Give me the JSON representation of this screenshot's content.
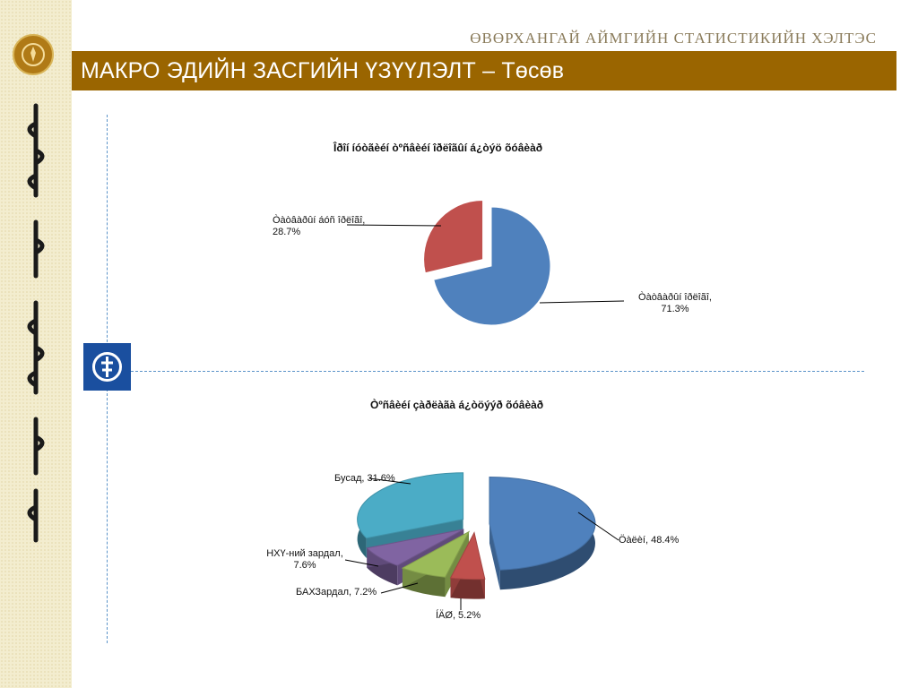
{
  "header": {
    "organization": "ӨВӨРХАНГАЙ АЙМГИЙН СТАТИСТИКИЙН ХЭЛТЭС",
    "slide_title": "МАКРО ЭДИЙН ЗАСГИЙН ҮЗҮҮЛЭЛТ – Төсөв"
  },
  "colors": {
    "title_bar": "#9a6500",
    "left_band": "#f3edcf",
    "divider": "#5a92c8",
    "icon_bg": "#1a4f9f"
  },
  "chart_data": [
    {
      "type": "pie",
      "title": "Îðîí íóòãèéí òºñâèéí îðëîãûí á¿òýö õóâèàð",
      "slices": [
        {
          "label": "Òàòâàðûí îðëîãî, 71.3%",
          "value": 71.3,
          "color": "#4f81bd"
        },
        {
          "label": "Òàòâàðûí áóñ îðëîãî, 28.7%",
          "value": 28.7,
          "color": "#c0504d"
        }
      ]
    },
    {
      "type": "pie",
      "title": "Òºñâèéí çàðëàãà á¿òöýýð õóâèàð",
      "slices": [
        {
          "label": "Öàëèí, 48.4%",
          "value": 48.4,
          "color": "#4f81bd"
        },
        {
          "label": "ÍÄØ, 5.2%",
          "value": 5.2,
          "color": "#c0504d"
        },
        {
          "label": "БАХЗардал, 7.2%",
          "value": 7.2,
          "color": "#9bbb59"
        },
        {
          "label": "НХҮ-ний зардал, 7.6%",
          "value": 7.6,
          "color": "#8064a2"
        },
        {
          "label": "Бусад, 31.6%",
          "value": 31.6,
          "color": "#4bacc6"
        }
      ]
    }
  ]
}
